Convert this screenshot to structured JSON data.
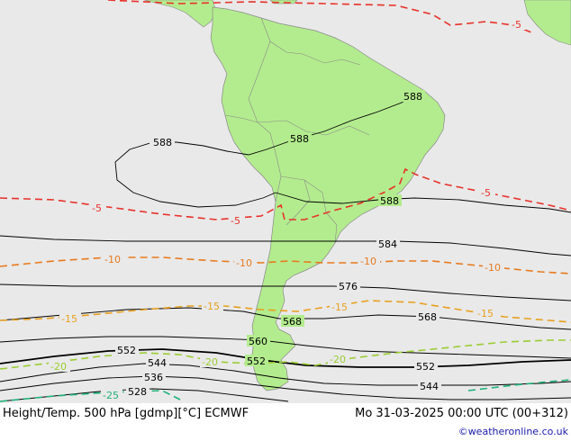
{
  "header": {
    "title": "Height/Temp. 500 hPa [gdmp][°C] ECMWF",
    "timestamp": "Mo 31-03-2025 00:00 UTC (00+312)",
    "credit": "©weatheronline.co.uk"
  },
  "colors": {
    "ocean": "#e9e9e9",
    "land": "#b3ec8e",
    "height_contour": "#000000",
    "temp_-5": "#e8322a",
    "temp_-10": "#e87a1e",
    "temp_-15": "#e8a01e",
    "temp_-20": "#9acd32",
    "temp_-25": "#20b27a"
  },
  "height_labels": [
    "588",
    "588",
    "588",
    "588",
    "584",
    "576",
    "568",
    "568",
    "560",
    "552",
    "552",
    "552",
    "544",
    "544",
    "536",
    "528"
  ],
  "temp_labels": [
    "-5",
    "-5",
    "-5",
    "-5",
    "-10",
    "-10",
    "-10",
    "-10",
    "-15",
    "-15",
    "-15",
    "-15",
    "-20",
    "-20",
    "-20",
    "-25"
  ]
}
